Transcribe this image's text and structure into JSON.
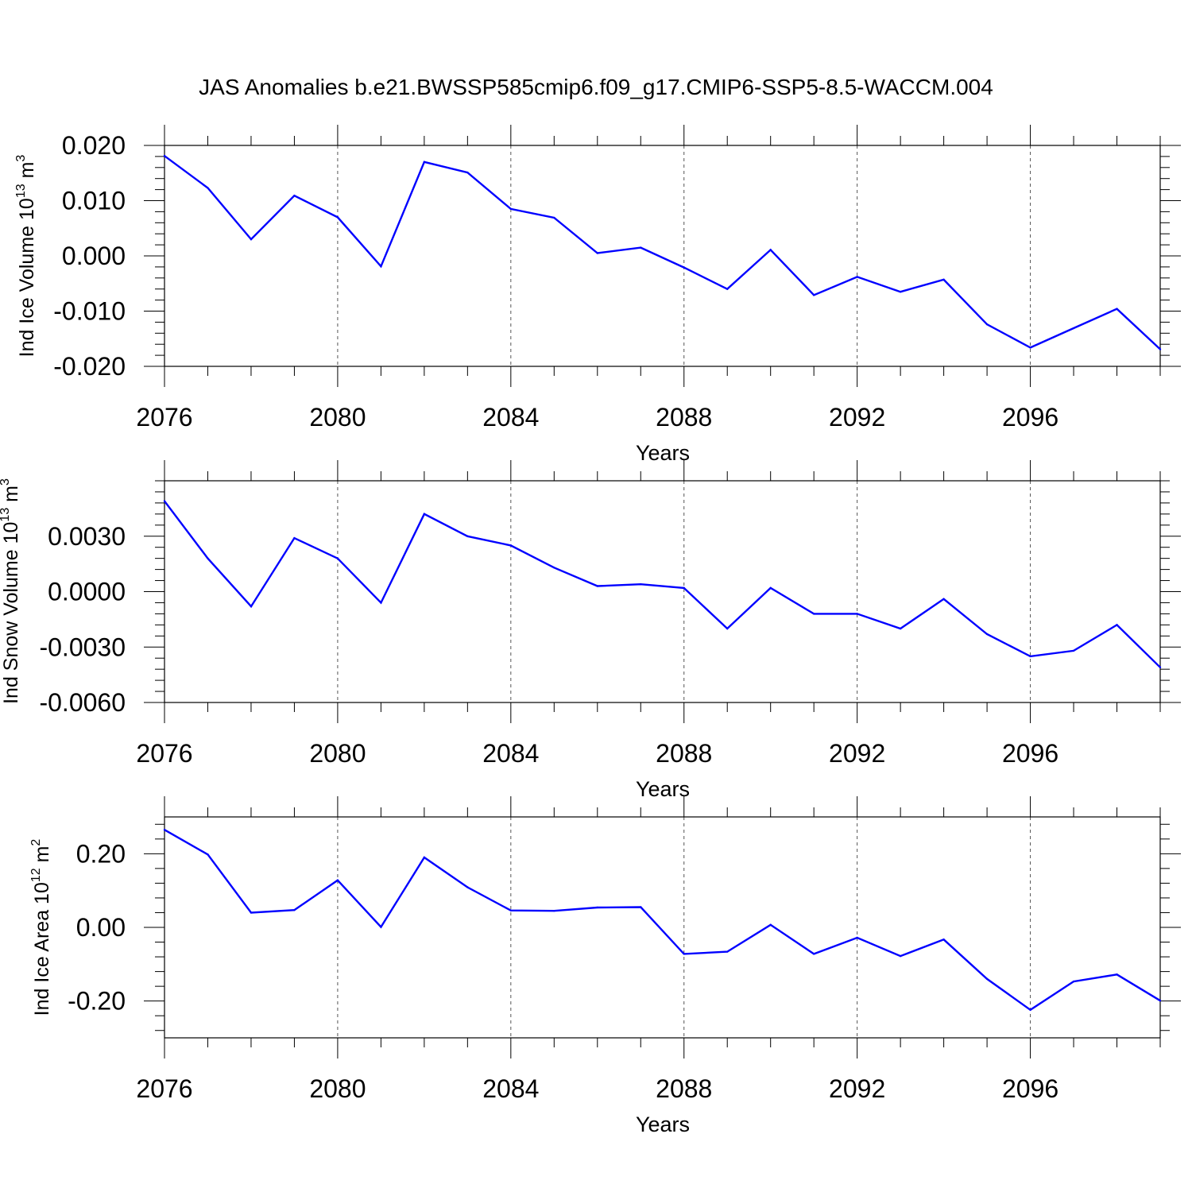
{
  "figure": {
    "title": "JAS Anomalies b.e21.BWSSP585cmip6.f09_g17.CMIP6-SSP5-8.5-WACCM.004"
  },
  "colors": {
    "series": "#0000ff",
    "axis": "#000000",
    "grid": "#555555"
  },
  "chart_data": [
    {
      "type": "line",
      "title": "",
      "xlabel": "Years",
      "ylabel": {
        "text": "Ind Ice Volume 10",
        "sup": "13",
        "unit": " m",
        "unit_sup": "3"
      },
      "xlim": [
        2076,
        2099
      ],
      "ylim": [
        -0.02,
        0.02
      ],
      "x_ticks": [
        2076,
        2080,
        2084,
        2088,
        2092,
        2096
      ],
      "x_tick_labels": [
        "2076",
        "2080",
        "2084",
        "2088",
        "2092",
        "2096"
      ],
      "y_ticks": [
        -0.02,
        -0.01,
        0.0,
        0.01,
        0.02
      ],
      "y_tick_labels": [
        "-0.020",
        "-0.010",
        "0.000",
        "0.010",
        "0.020"
      ],
      "grid": "vertical dashed at major x ticks",
      "x": [
        2076,
        2077,
        2078,
        2079,
        2080,
        2081,
        2082,
        2083,
        2084,
        2085,
        2086,
        2087,
        2088,
        2089,
        2090,
        2091,
        2092,
        2093,
        2094,
        2095,
        2096,
        2097,
        2098,
        2099
      ],
      "series": [
        {
          "values": [
            0.0181,
            0.0123,
            0.003,
            0.0109,
            0.007,
            -0.0019,
            0.017,
            0.0151,
            0.0085,
            0.0069,
            0.0005,
            0.0015,
            -0.0021,
            -0.006,
            0.0011,
            -0.0071,
            -0.0038,
            -0.0065,
            -0.0043,
            -0.0124,
            -0.0166,
            -0.0131,
            -0.0096,
            -0.0169
          ]
        }
      ]
    },
    {
      "type": "line",
      "title": "",
      "xlabel": "Years",
      "ylabel": {
        "text": "Ind Snow Volume 10",
        "sup": "13",
        "unit": " m",
        "unit_sup": "3"
      },
      "xlim": [
        2076,
        2099
      ],
      "ylim": [
        -0.006,
        0.006
      ],
      "x_ticks": [
        2076,
        2080,
        2084,
        2088,
        2092,
        2096
      ],
      "x_tick_labels": [
        "2076",
        "2080",
        "2084",
        "2088",
        "2092",
        "2096"
      ],
      "y_ticks": [
        -0.006,
        -0.003,
        0.0,
        0.003
      ],
      "y_tick_labels": [
        "-0.0060",
        "-0.0030",
        "0.0000",
        "0.0030"
      ],
      "grid": "vertical dashed at major x ticks",
      "x": [
        2076,
        2077,
        2078,
        2079,
        2080,
        2081,
        2082,
        2083,
        2084,
        2085,
        2086,
        2087,
        2088,
        2089,
        2090,
        2091,
        2092,
        2093,
        2094,
        2095,
        2096,
        2097,
        2098,
        2099
      ],
      "series": [
        {
          "values": [
            0.0049,
            0.0018,
            -0.0008,
            0.0029,
            0.0018,
            -0.0006,
            0.0042,
            0.003,
            0.0025,
            0.0013,
            0.0003,
            0.0004,
            0.0002,
            -0.002,
            0.0002,
            -0.0012,
            -0.0012,
            -0.002,
            -0.0004,
            -0.0023,
            -0.0035,
            -0.0032,
            -0.0018,
            -0.0041
          ]
        }
      ]
    },
    {
      "type": "line",
      "title": "",
      "xlabel": "Years",
      "ylabel": {
        "text": "Ind Ice Area 10",
        "sup": "12",
        "unit": " m",
        "unit_sup": "2"
      },
      "xlim": [
        2076,
        2099
      ],
      "ylim": [
        -0.3,
        0.3
      ],
      "x_ticks": [
        2076,
        2080,
        2084,
        2088,
        2092,
        2096
      ],
      "x_tick_labels": [
        "2076",
        "2080",
        "2084",
        "2088",
        "2092",
        "2096"
      ],
      "y_ticks": [
        -0.2,
        0.0,
        0.2
      ],
      "y_tick_labels": [
        "-0.20",
        "0.00",
        "0.20"
      ],
      "grid": "vertical dashed at major x ticks",
      "x": [
        2076,
        2077,
        2078,
        2079,
        2080,
        2081,
        2082,
        2083,
        2084,
        2085,
        2086,
        2087,
        2088,
        2089,
        2090,
        2091,
        2092,
        2093,
        2094,
        2095,
        2096,
        2097,
        2098,
        2099
      ],
      "series": [
        {
          "values": [
            0.265,
            0.198,
            0.04,
            0.047,
            0.128,
            0.001,
            0.19,
            0.109,
            0.046,
            0.045,
            0.054,
            0.055,
            -0.072,
            -0.066,
            0.007,
            -0.072,
            -0.028,
            -0.078,
            -0.033,
            -0.14,
            -0.224,
            -0.147,
            -0.128,
            -0.199
          ]
        }
      ]
    }
  ]
}
